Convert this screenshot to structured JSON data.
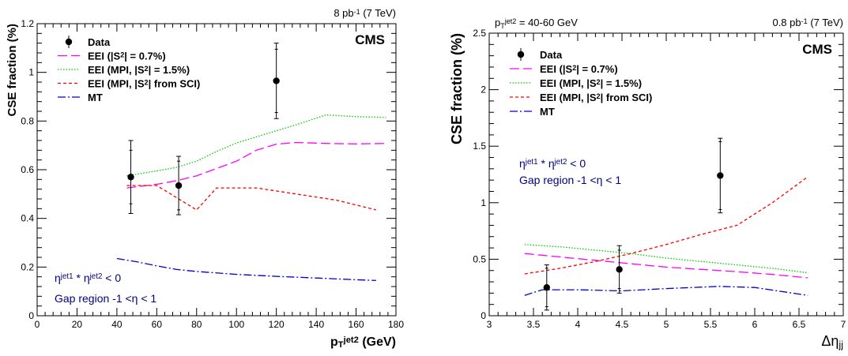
{
  "chart_data": [
    {
      "type": "line",
      "top_right_label": "8 pb<sup>-1</sup> (7 TeV)",
      "experiment": "CMS",
      "xlabel": "p<sub>T</sub><sup>jet2</sup> (GeV)",
      "ylabel": "CSE fraction (%)",
      "xlim": [
        0,
        180
      ],
      "ylim": [
        0,
        1.2
      ],
      "xticks": [
        0,
        20,
        40,
        60,
        80,
        100,
        120,
        140,
        160,
        180
      ],
      "yticks": [
        0,
        0.2,
        0.4,
        0.6,
        0.8,
        1,
        1.2
      ],
      "legend_position": "top-left",
      "annotations": [
        "η<sup>jet1</sup> * η<sup>jet2</sup> &lt; 0",
        "Gap region -1 &lt;η &lt; 1"
      ],
      "data_points": {
        "name": "Data",
        "x": [
          47,
          71,
          120
        ],
        "y": [
          0.57,
          0.535,
          0.965
        ],
        "err_stat": [
          0.11,
          0.1,
          0.13
        ],
        "err_tot": [
          0.15,
          0.12,
          0.155
        ]
      },
      "series": [
        {
          "name": "EEI (|S<sup>2</sup>| = 0.7%)",
          "color": "#ff00ff",
          "dash": "12,5",
          "x": [
            45,
            60,
            70,
            80,
            90,
            100,
            110,
            120,
            130,
            145,
            160,
            175
          ],
          "y": [
            0.525,
            0.54,
            0.555,
            0.575,
            0.605,
            0.635,
            0.68,
            0.705,
            0.712,
            0.708,
            0.706,
            0.708
          ]
        },
        {
          "name": "EEI (MPI, |S<sup>2</sup>| = 1.5%)",
          "color": "#00cc00",
          "dash": "1.5,2",
          "x": [
            45,
            60,
            70,
            80,
            90,
            100,
            110,
            120,
            130,
            145,
            160,
            175
          ],
          "y": [
            0.575,
            0.595,
            0.61,
            0.635,
            0.675,
            0.71,
            0.735,
            0.76,
            0.785,
            0.825,
            0.818,
            0.815
          ]
        },
        {
          "name": "EEI (MPI, |S<sup>2</sup>| from SCI)",
          "color": "#ff0000",
          "dash": "4,3",
          "x": [
            45,
            60,
            70,
            80,
            90,
            100,
            110,
            130,
            150,
            170
          ],
          "y": [
            0.535,
            0.535,
            0.485,
            0.435,
            0.525,
            0.525,
            0.525,
            0.5,
            0.475,
            0.435
          ]
        },
        {
          "name": "MT",
          "color": "#0000cc",
          "dash": "10,3,2,3",
          "x": [
            40,
            50,
            60,
            70,
            80,
            100,
            120,
            140,
            160,
            170
          ],
          "y": [
            0.235,
            0.222,
            0.205,
            0.19,
            0.182,
            0.17,
            0.162,
            0.155,
            0.148,
            0.145
          ]
        }
      ]
    },
    {
      "type": "line",
      "top_left_label": "p<tspan baseline-shift=\"-28%\" font-size=\"9\">T</tspan><tspan baseline-shift=\"34%\" font-size=\"9\">jet2</tspan> = 40-60 GeV",
      "top_right_label": "0.8 pb<sup>-1</sup> (7 TeV)",
      "experiment": "CMS",
      "xlabel": "Δη<sub>jj</sub>",
      "ylabel": "CSE fraction (%)",
      "xlim": [
        3,
        7
      ],
      "ylim": [
        0,
        2.5
      ],
      "xticks": [
        3,
        3.5,
        4,
        4.5,
        5,
        5.5,
        6,
        6.5,
        7
      ],
      "yticks": [
        0,
        0.5,
        1,
        1.5,
        2,
        2.5
      ],
      "legend_position": "top-left",
      "annotations": [
        "η<sup>jet1</sup> * η<sup>jet2</sup> &lt; 0",
        "Gap region -1 &lt;η &lt; 1"
      ],
      "data_points": {
        "name": "Data",
        "x": [
          3.65,
          4.47,
          5.61
        ],
        "y": [
          0.25,
          0.41,
          1.24
        ],
        "err_stat": [
          0.17,
          0.17,
          0.3
        ],
        "err_tot": [
          0.2,
          0.21,
          0.33
        ]
      },
      "series": [
        {
          "name": "EEI (|S<sup>2</sup>| = 0.7%)",
          "color": "#ff00ff",
          "dash": "12,5",
          "x": [
            3.4,
            3.8,
            4.2,
            4.6,
            5.0,
            5.4,
            5.8,
            6.2,
            6.6
          ],
          "y": [
            0.55,
            0.52,
            0.49,
            0.46,
            0.43,
            0.41,
            0.39,
            0.365,
            0.335
          ]
        },
        {
          "name": "EEI (MPI, |S<sup>2</sup>| = 1.5%)",
          "color": "#00cc00",
          "dash": "1.5,2",
          "x": [
            3.4,
            3.8,
            4.2,
            4.6,
            5.0,
            5.4,
            5.8,
            6.2,
            6.6
          ],
          "y": [
            0.63,
            0.61,
            0.58,
            0.55,
            0.51,
            0.48,
            0.45,
            0.42,
            0.38
          ]
        },
        {
          "name": "EEI (MPI, |S<sup>2</sup>| from SCI)",
          "color": "#ff0000",
          "dash": "4,3",
          "x": [
            3.4,
            3.8,
            4.2,
            4.6,
            5.0,
            5.4,
            5.8,
            6.2,
            6.6
          ],
          "y": [
            0.37,
            0.42,
            0.48,
            0.55,
            0.63,
            0.72,
            0.8,
            1.0,
            1.23
          ]
        },
        {
          "name": "MT",
          "color": "#0000cc",
          "dash": "10,3,2,3",
          "x": [
            3.4,
            3.6,
            4.0,
            4.5,
            5.0,
            5.6,
            6.0,
            6.6
          ],
          "y": [
            0.18,
            0.23,
            0.23,
            0.22,
            0.24,
            0.26,
            0.25,
            0.18
          ]
        }
      ]
    }
  ]
}
